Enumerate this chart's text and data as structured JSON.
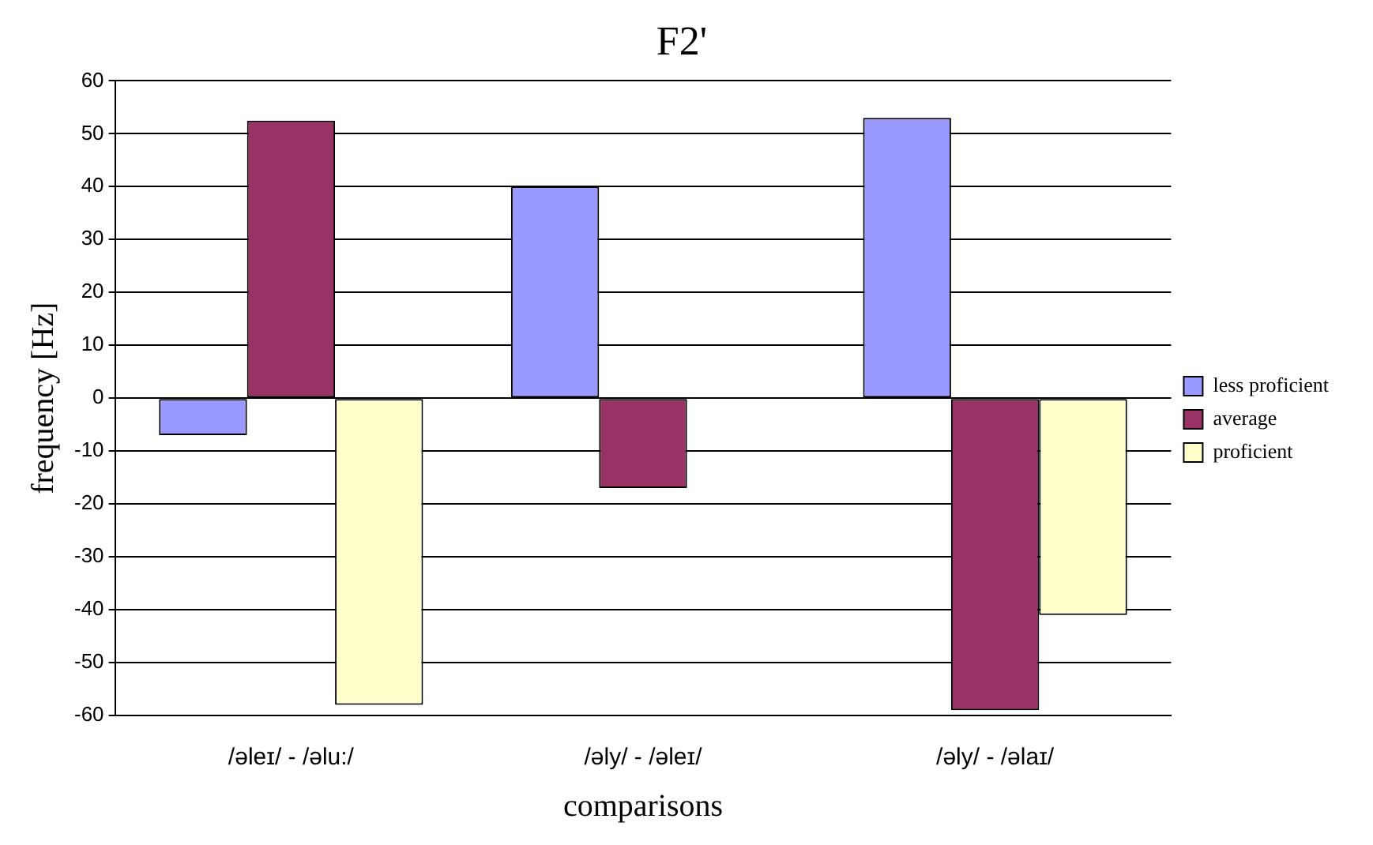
{
  "chart_data": {
    "type": "bar",
    "title": "F2'",
    "xlabel": "comparisons",
    "ylabel": "frequency [Hz]",
    "categories": [
      "/əleɪ/ - /əlu:/",
      "/əly/ - /əleɪ/",
      "/əly/ - /əlaɪ/"
    ],
    "series": [
      {
        "name": "less proficient",
        "color": "#9999ff",
        "values": [
          -7,
          40,
          53
        ]
      },
      {
        "name": "average",
        "color": "#993366",
        "values": [
          52.5,
          -17,
          -59
        ]
      },
      {
        "name": "proficient",
        "color": "#ffffcc",
        "values": [
          -58,
          0,
          -41
        ]
      }
    ],
    "ylim": [
      -60,
      60
    ],
    "yticks": [
      -60,
      -50,
      -40,
      -30,
      -20,
      -10,
      0,
      10,
      20,
      30,
      40,
      50,
      60
    ],
    "grid": "y",
    "legend": "right"
  }
}
